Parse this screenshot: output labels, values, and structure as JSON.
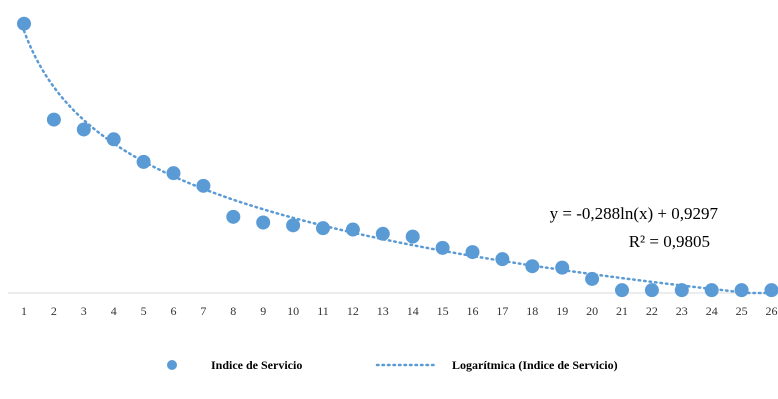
{
  "chart_data": {
    "type": "scatter",
    "x": [
      1,
      2,
      3,
      4,
      5,
      6,
      7,
      8,
      9,
      10,
      11,
      12,
      13,
      14,
      15,
      16,
      17,
      18,
      19,
      20,
      21,
      22,
      23,
      24,
      25,
      26
    ],
    "series": [
      {
        "name": "Indice de Servicio",
        "color": "#5b9bd5",
        "values": [
          0.955,
          0.615,
          0.58,
          0.545,
          0.465,
          0.425,
          0.38,
          0.27,
          0.25,
          0.24,
          0.23,
          0.225,
          0.21,
          0.2,
          0.16,
          0.145,
          0.12,
          0.095,
          0.09,
          0.05,
          0.01,
          0.01,
          0.01,
          0.01,
          0.01,
          0.01
        ]
      }
    ],
    "trendline": {
      "name": "Logarítmica (Indice de Servicio)",
      "type": "logarithmic",
      "a": -0.288,
      "b": 0.9297,
      "color": "#5b9bd5",
      "equation_label": "y = -0,288ln(x) + 0,9297",
      "r2_label": "R² = 0,9805"
    },
    "xtick_labels": [
      "1",
      "2",
      "3",
      "4",
      "5",
      "6",
      "7",
      "8",
      "9",
      "10",
      "11",
      "12",
      "13",
      "14",
      "15",
      "16",
      "17",
      "18",
      "19",
      "20",
      "21",
      "22",
      "23",
      "24",
      "25",
      "26"
    ],
    "ylim": [
      0,
      1
    ],
    "legend_position": "bottom",
    "grid": false
  }
}
